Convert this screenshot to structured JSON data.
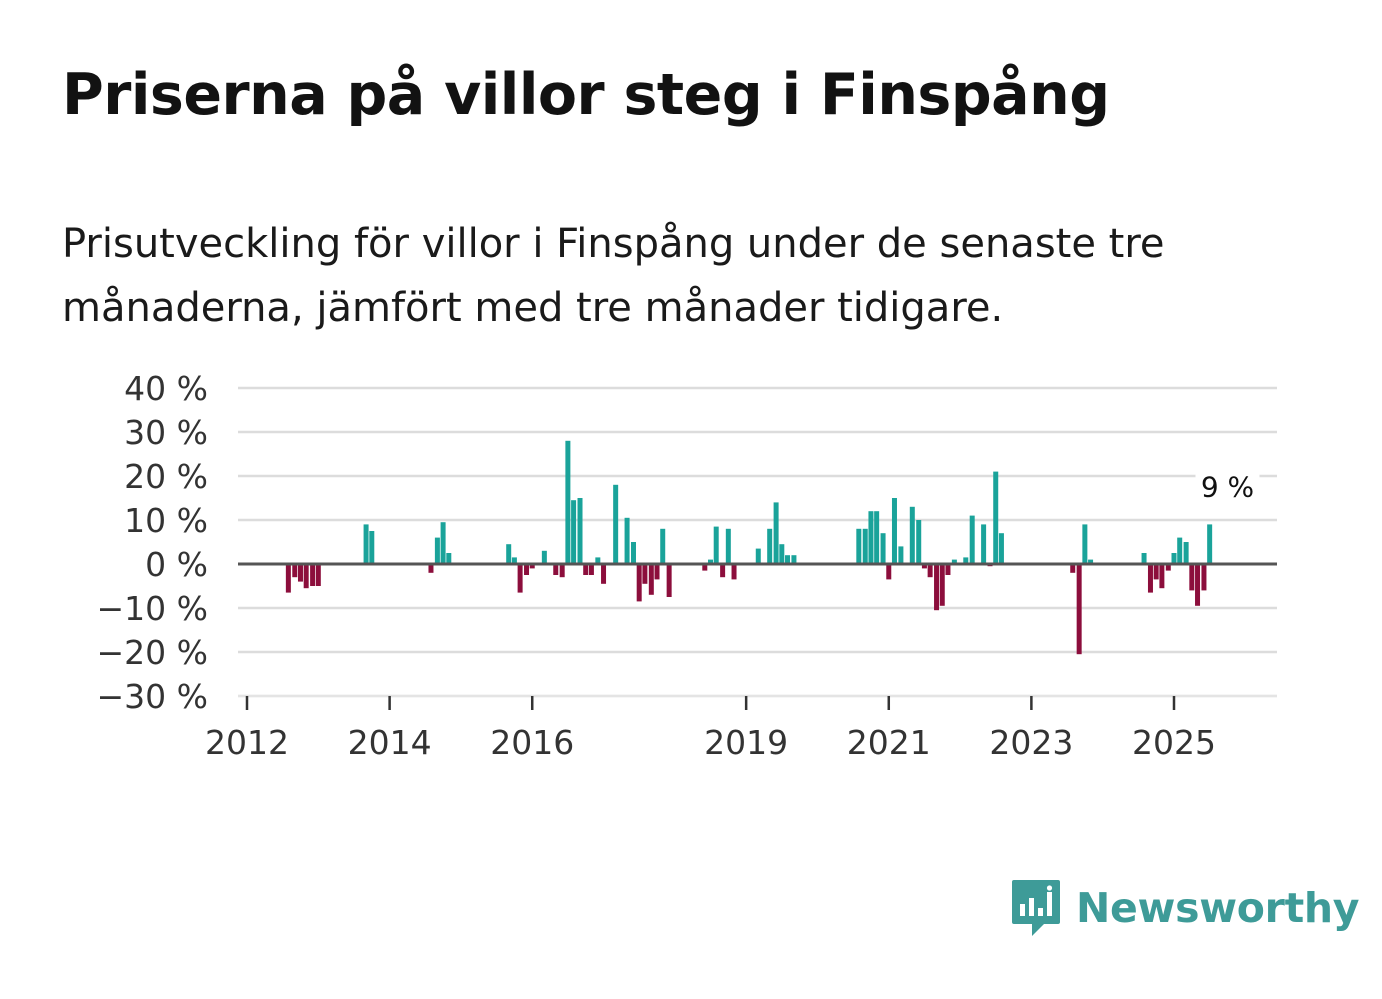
{
  "title": "Priserna på villor steg i Finspång",
  "subtitle": "Prisutveckling för villor i Finspång under de senaste tre månaderna, jämfört med tre månader tidigare.",
  "brand": {
    "name": "Newsworthy",
    "icon": "newsworthy-logo-icon"
  },
  "colors": {
    "positive": "#1aa39a",
    "negative": "#8c0e3c",
    "grid": "#dcdcdc",
    "zero_line": "#555555",
    "brand": "#3e9b98"
  },
  "chart_data": {
    "type": "bar",
    "title": "Priserna på villor steg i Finspång",
    "ylim": [
      -30,
      40
    ],
    "yticks": [
      40,
      30,
      20,
      10,
      0,
      -10,
      -20,
      -30
    ],
    "ytick_labels": [
      "40 %",
      "30 %",
      "20 %",
      "10 %",
      "0 %",
      "−10 %",
      "−20 %",
      "−30 %"
    ],
    "xlim": [
      2012.0,
      2026.4
    ],
    "xticks": [
      2012,
      2014,
      2016,
      2019,
      2021,
      2023,
      2025
    ],
    "xtick_labels": [
      "2012",
      "2014",
      "2016",
      "2019",
      "2021",
      "2023",
      "2025"
    ],
    "annotation": {
      "label": "9 %",
      "x": 2025.75,
      "value": 9
    },
    "series": [
      {
        "name": "Prisutveckling",
        "x": [
          2012.58,
          2012.67,
          2012.75,
          2012.83,
          2012.92,
          2013.0,
          2013.67,
          2013.75,
          2014.58,
          2014.67,
          2014.75,
          2014.83,
          2015.67,
          2015.75,
          2015.83,
          2015.92,
          2016.0,
          2016.17,
          2016.33,
          2016.42,
          2016.5,
          2016.58,
          2016.67,
          2016.75,
          2016.83,
          2016.92,
          2017.0,
          2017.17,
          2017.33,
          2017.42,
          2017.5,
          2017.58,
          2017.67,
          2017.75,
          2017.83,
          2017.92,
          2018.42,
          2018.5,
          2018.58,
          2018.67,
          2018.75,
          2018.83,
          2019.17,
          2019.33,
          2019.42,
          2019.5,
          2019.58,
          2019.67,
          2020.58,
          2020.67,
          2020.75,
          2020.83,
          2020.92,
          2021.0,
          2021.08,
          2021.17,
          2021.33,
          2021.42,
          2021.5,
          2021.58,
          2021.67,
          2021.75,
          2021.83,
          2021.92,
          2022.08,
          2022.17,
          2022.33,
          2022.42,
          2022.5,
          2022.58,
          2023.58,
          2023.67,
          2023.75,
          2023.83,
          2024.58,
          2024.67,
          2024.75,
          2024.83,
          2024.92,
          2025.0,
          2025.08,
          2025.17,
          2025.25,
          2025.33,
          2025.42,
          2025.5,
          2025.58,
          2025.67,
          2025.83
        ],
        "values": [
          -6.5,
          -3,
          -4,
          -5.5,
          -5,
          -5,
          9,
          7.5,
          -2,
          6,
          9.5,
          2.5,
          4.5,
          1.5,
          -6.5,
          -2.5,
          -1,
          3,
          -2.5,
          -3,
          28,
          14.5,
          15,
          -2.5,
          -2.5,
          1.5,
          -4.5,
          18,
          10.5,
          5,
          -8.5,
          -4.5,
          -7,
          -3.5,
          8,
          -7.5,
          -1.5,
          1,
          8.5,
          -3,
          8,
          -3.5,
          3.5,
          8,
          14,
          4.5,
          2,
          2,
          8,
          8,
          12,
          12,
          7,
          -3.5,
          15,
          4,
          13,
          10,
          -1,
          -3,
          -10.5,
          -9.5,
          -2.5,
          1,
          1.5,
          11,
          9,
          -0.5,
          21,
          7,
          -2,
          -20.5,
          9,
          1,
          2.5,
          -6.5,
          -3.5,
          -5.5,
          -1.5,
          2.5,
          6,
          5,
          -6,
          -9.5,
          -6,
          9,
          0,
          0,
          0
        ]
      }
    ]
  }
}
